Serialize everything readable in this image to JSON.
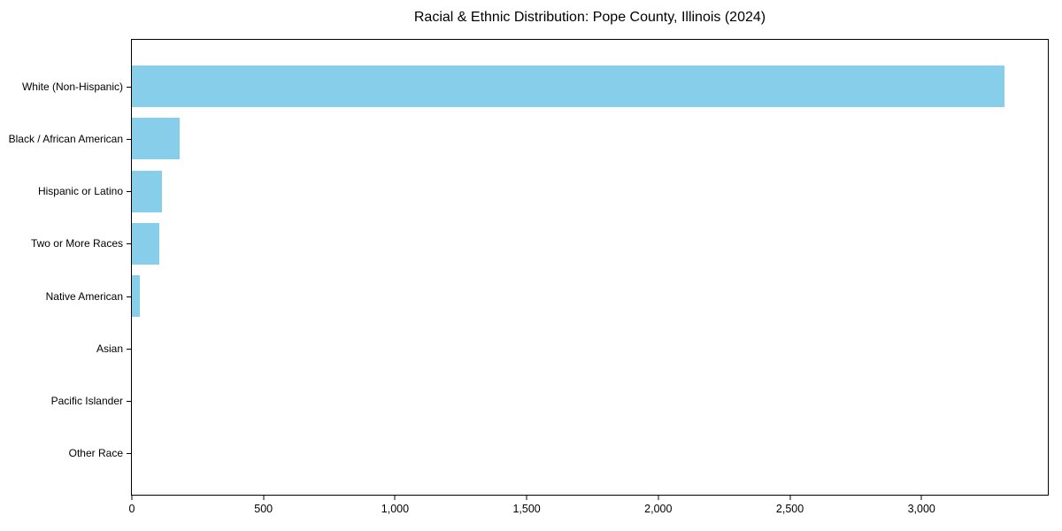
{
  "chart_data": {
    "type": "bar",
    "orientation": "horizontal",
    "title": "Racial & Ethnic Distribution: Pope County, Illinois (2024)",
    "categories": [
      "White (Non-Hispanic)",
      "Black / African American",
      "Hispanic or Latino",
      "Two or More Races",
      "Native American",
      "Asian",
      "Pacific Islander",
      "Other Race"
    ],
    "values": [
      3315,
      180,
      115,
      105,
      30,
      0,
      0,
      0
    ],
    "xlabel": "",
    "ylabel": "",
    "xlim": [
      0,
      3480
    ],
    "xticks": [
      0,
      500,
      1000,
      1500,
      2000,
      2500,
      3000
    ],
    "xtick_labels": [
      "0",
      "500",
      "1,000",
      "1,500",
      "2,000",
      "2,500",
      "3,000"
    ],
    "bar_color": "#87CEEB",
    "background_color": "#ffffff",
    "spine_color": "#000000",
    "grid": false,
    "legend": null
  }
}
